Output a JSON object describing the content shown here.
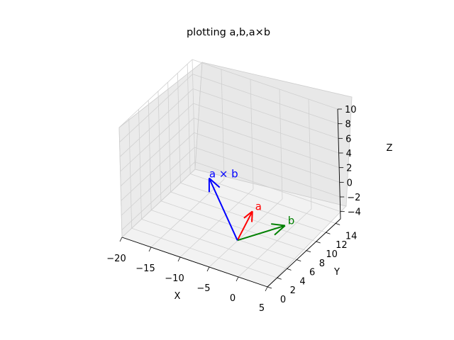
{
  "chart_data": {
    "type": "3d-vector",
    "title": "plotting a,b,a×b",
    "xlabel": "X",
    "ylabel": "Y",
    "zlabel": "Z",
    "xlim": [
      -20,
      5
    ],
    "ylim": [
      0,
      15
    ],
    "zlim": [
      -5,
      10
    ],
    "xticks": [
      "−20",
      "−15",
      "−10",
      "−5",
      "0",
      "5"
    ],
    "yticks": [
      "0",
      "2",
      "4",
      "6",
      "8",
      "10",
      "12",
      "14"
    ],
    "zticks": [
      "−4",
      "−2",
      "0",
      "2",
      "4",
      "6",
      "8",
      "10"
    ],
    "grid": true,
    "vectors": [
      {
        "name": "a",
        "origin": [
          0,
          0,
          0
        ],
        "components": [
          1,
          2,
          3
        ],
        "color": "#ff0000"
      },
      {
        "name": "b",
        "origin": [
          0,
          0,
          0
        ],
        "components": [
          4,
          5,
          0
        ],
        "color": "#008000"
      },
      {
        "name": "a × b",
        "origin": [
          0,
          0,
          0
        ],
        "components": [
          -15,
          12,
          -3
        ],
        "color": "#0000ff"
      }
    ],
    "colors": {
      "pane": "#f2f2f2",
      "pane_edge": "#cccccc",
      "grid": "#d0d0d0"
    }
  }
}
